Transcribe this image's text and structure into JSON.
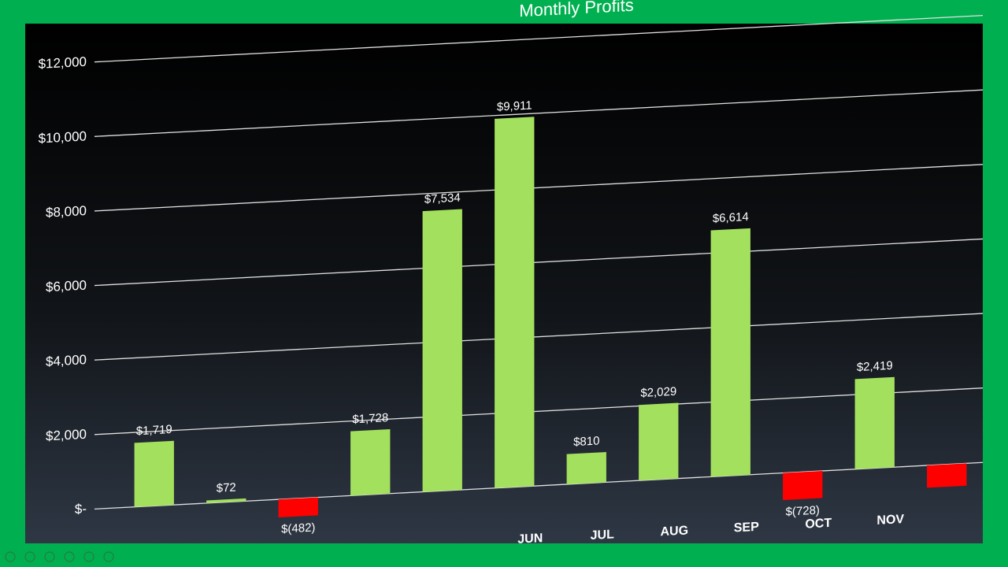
{
  "chart_data": {
    "type": "bar",
    "title": "Monthly Profits",
    "categories": [
      null,
      null,
      null,
      null,
      null,
      "JUN",
      "JUL",
      "AUG",
      "SEP",
      "OCT",
      "NOV",
      null
    ],
    "values": [
      1719,
      72,
      -482,
      1728,
      7534,
      9911,
      810,
      2029,
      6614,
      -728,
      2419,
      -600
    ],
    "value_labels": [
      "$1,719",
      "$72",
      "$(482)",
      "$1,728",
      "$7,534",
      "$9,911",
      "$810",
      "$2,029",
      "$6,614",
      "$(728)",
      "$2,419",
      null
    ],
    "positive_color": "#a3e05e",
    "negative_color": "#ff0000",
    "ylim": [
      -1000,
      12000
    ],
    "yticks": [
      {
        "value": 0,
        "label": "$-"
      },
      {
        "value": 2000,
        "label": "$2,000"
      },
      {
        "value": 4000,
        "label": "$4,000"
      },
      {
        "value": 6000,
        "label": "$6,000"
      },
      {
        "value": 8000,
        "label": "$8,000"
      },
      {
        "value": 10000,
        "label": "$10,000"
      },
      {
        "value": 12000,
        "label": "$12,000"
      }
    ],
    "grid": true
  }
}
